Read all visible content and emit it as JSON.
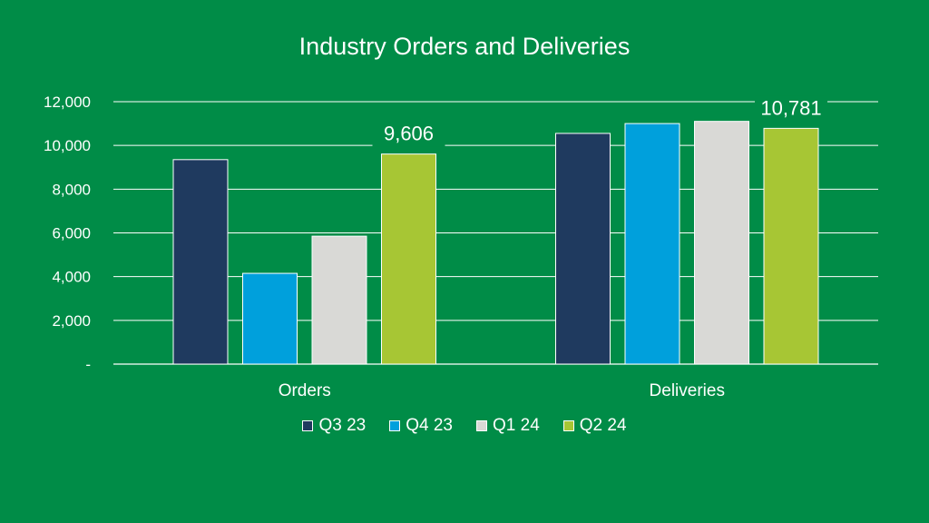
{
  "chart_data": {
    "type": "bar",
    "title": "Industry Orders and Deliveries",
    "categories": [
      "Orders",
      "Deliveries"
    ],
    "series": [
      {
        "name": "Q3 23",
        "values": [
          9350,
          10550
        ],
        "color": "#1F3A5F"
      },
      {
        "name": "Q4 23",
        "values": [
          4150,
          11000
        ],
        "color": "#00A0DC"
      },
      {
        "name": "Q1 24",
        "values": [
          5850,
          11100
        ],
        "color": "#D9D9D6"
      },
      {
        "name": "Q2 24",
        "values": [
          9606,
          10781
        ],
        "color": "#A7C634"
      }
    ],
    "ylim": [
      0,
      12000
    ],
    "yticks": [
      0,
      2000,
      4000,
      6000,
      8000,
      10000,
      12000
    ],
    "ytick_labels": [
      "-",
      "2,000",
      "4,000",
      "6,000",
      "8,000",
      "10,000",
      "12,000"
    ],
    "annotations": [
      {
        "category": "Orders",
        "series": "Q2 24",
        "text": "9,606"
      },
      {
        "category": "Deliveries",
        "series": "Q2 24",
        "text": "10,781"
      }
    ],
    "grid": true,
    "legend_position": "bottom",
    "background": "#008C47"
  }
}
